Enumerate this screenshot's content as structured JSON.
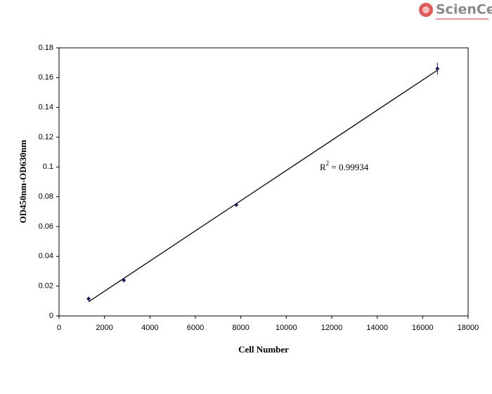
{
  "logo": "ScienCell",
  "chart_data": {
    "type": "scatter",
    "x_label": "Cell Number",
    "y_label": "OD450nm-OD630nm",
    "x": [
      1300,
      2850,
      7800,
      16650
    ],
    "values": [
      0.0115,
      0.024,
      0.0745,
      0.166
    ],
    "errors": [
      0.0015,
      0.0015,
      0.001,
      0.004
    ],
    "color": "#1a1a5e",
    "trendline": {
      "x": [
        1300,
        16650
      ],
      "y": [
        0.0095,
        0.165
      ]
    },
    "annotation": {
      "base": "R",
      "superscript": "2",
      "text": " = 0.99934"
    },
    "xlim": [
      0,
      18000
    ],
    "xticks": [
      0,
      2000,
      4000,
      6000,
      8000,
      10000,
      12000,
      14000,
      16000,
      18000
    ],
    "ylim": [
      0,
      0.18
    ],
    "yticks": [
      0,
      0.02,
      0.04,
      0.06,
      0.08,
      0.1,
      0.12,
      0.14,
      0.16,
      0.18
    ],
    "grid": false
  }
}
